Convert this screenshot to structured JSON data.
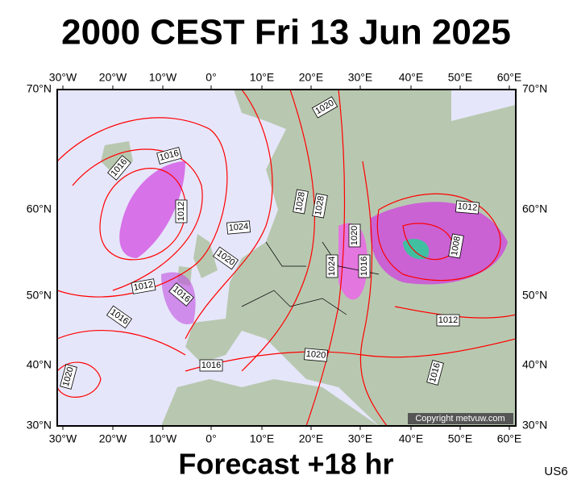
{
  "title": "2000 CEST Fri 13 Jun 2025",
  "footer": "Forecast +18 hr",
  "model": "US6",
  "copyright": "Copyright metvuw.com",
  "lon_labels": [
    "30°W",
    "20°W",
    "10°W",
    "0°",
    "10°E",
    "20°E",
    "30°E",
    "40°E",
    "50°E",
    "60°E"
  ],
  "lat_labels": [
    "70°N",
    "60°N",
    "50°N",
    "40°N",
    "30°N"
  ],
  "isobar_labels": [
    "1020",
    "1016",
    "1016",
    "1012",
    "1024",
    "1028",
    "1028",
    "1020",
    "1020",
    "1024",
    "1016",
    "1012",
    "1008",
    "1012",
    "1016",
    "1016",
    "1012",
    "1020",
    "1016",
    "1020",
    "1016"
  ]
}
